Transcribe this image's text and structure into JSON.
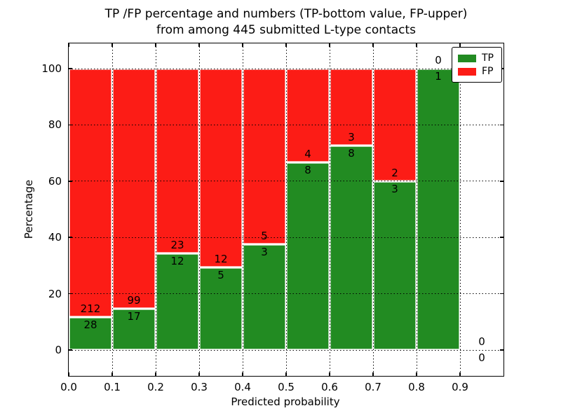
{
  "title": {
    "line1": "TP /FP percentage and numbers (TP-bottom value, FP-upper)",
    "line2": "from among 445 submitted L-type contacts"
  },
  "chart_data": {
    "type": "stacked_bar",
    "title": "TP /FP percentage and numbers (TP-bottom value, FP-upper) from among 445 submitted L-type contacts",
    "xlabel": "Predicted probability",
    "ylabel": "Percentage",
    "total_contacts": 445,
    "bin_width": 0.1,
    "x_tick_labels": [
      "0.0",
      "0.1",
      "0.2",
      "0.3",
      "0.4",
      "0.5",
      "0.6",
      "0.7",
      "0.8",
      "0.9"
    ],
    "y_ticks": [
      0,
      20,
      40,
      60,
      80,
      100
    ],
    "xlim": [
      0.0,
      1.0
    ],
    "ylim": [
      -9.2,
      109.2
    ],
    "grid": "dotted black, both axes, on top of bars",
    "legend_position": "upper right",
    "value_label_rule": "FP count above TP/FP boundary, TP count below boundary",
    "series": [
      {
        "name": "TP",
        "color": "#228b22",
        "counts": [
          28,
          17,
          12,
          5,
          3,
          8,
          8,
          3,
          1,
          0
        ]
      },
      {
        "name": "FP",
        "color": "#fc1c16",
        "counts": [
          212,
          99,
          23,
          12,
          5,
          4,
          3,
          2,
          0,
          0
        ]
      }
    ],
    "bins": [
      {
        "x_start": 0.0,
        "x_end": 0.1,
        "tp": 28,
        "fp": 212
      },
      {
        "x_start": 0.1,
        "x_end": 0.2,
        "tp": 17,
        "fp": 99
      },
      {
        "x_start": 0.2,
        "x_end": 0.3,
        "tp": 12,
        "fp": 23
      },
      {
        "x_start": 0.3,
        "x_end": 0.4,
        "tp": 5,
        "fp": 12
      },
      {
        "x_start": 0.4,
        "x_end": 0.5,
        "tp": 3,
        "fp": 5
      },
      {
        "x_start": 0.5,
        "x_end": 0.6,
        "tp": 8,
        "fp": 4
      },
      {
        "x_start": 0.6,
        "x_end": 0.7,
        "tp": 8,
        "fp": 3
      },
      {
        "x_start": 0.7,
        "x_end": 0.8,
        "tp": 3,
        "fp": 2
      },
      {
        "x_start": 0.8,
        "x_end": 0.9,
        "tp": 1,
        "fp": 0
      },
      {
        "x_start": 0.9,
        "x_end": 1.0,
        "tp": 0,
        "fp": 0
      }
    ]
  }
}
